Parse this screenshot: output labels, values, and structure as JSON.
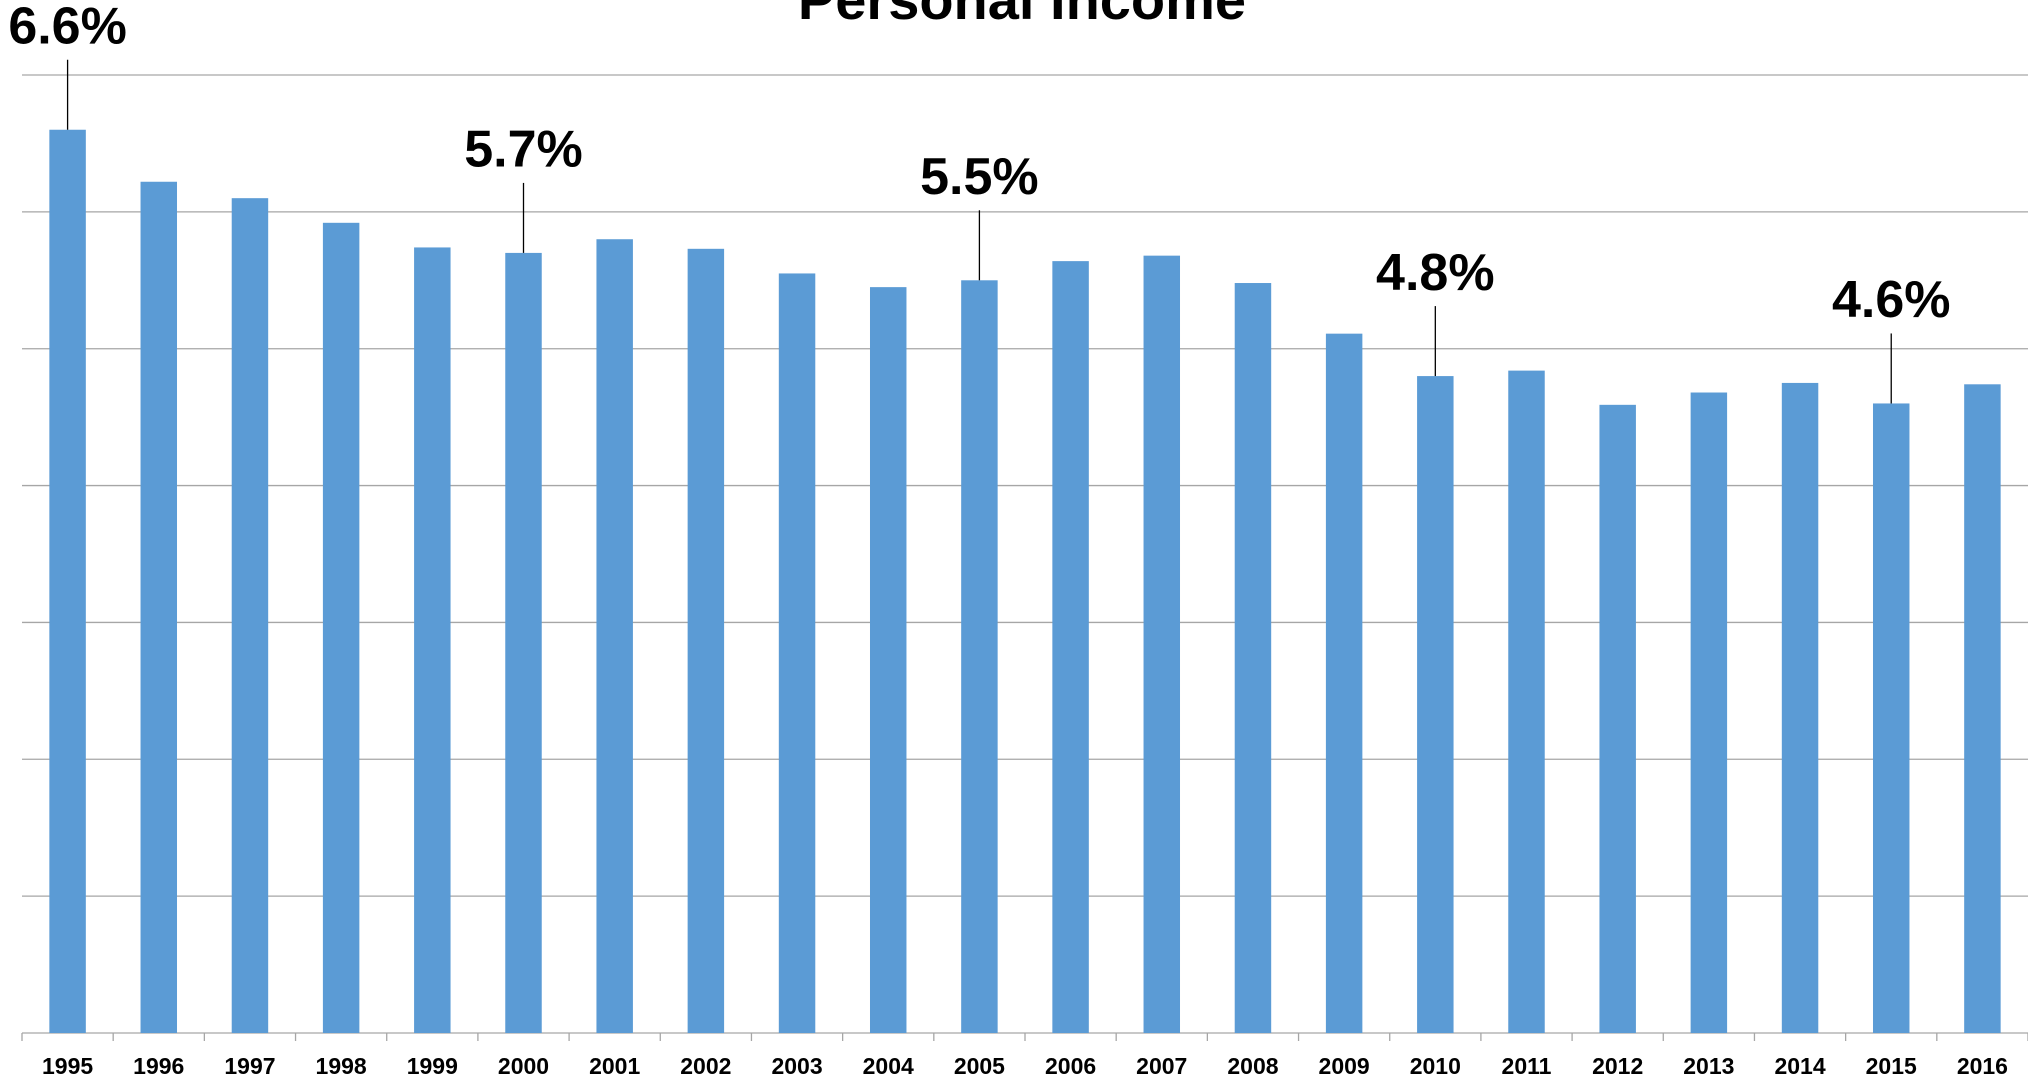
{
  "chart_data": {
    "type": "bar",
    "title": "Personal Income",
    "categories": [
      "1995",
      "1996",
      "1997",
      "1998",
      "1999",
      "2000",
      "2001",
      "2002",
      "2003",
      "2004",
      "2005",
      "2006",
      "2007",
      "2008",
      "2009",
      "2010",
      "2011",
      "2012",
      "2013",
      "2014",
      "2015",
      "2016"
    ],
    "values": [
      6.6,
      6.22,
      6.1,
      5.92,
      5.74,
      5.7,
      5.8,
      5.73,
      5.55,
      5.45,
      5.5,
      5.64,
      5.68,
      5.48,
      5.11,
      4.8,
      4.84,
      4.59,
      4.68,
      4.75,
      4.6,
      4.74
    ],
    "value_labels": [
      "6.6%",
      null,
      null,
      null,
      null,
      "5.7%",
      null,
      null,
      null,
      null,
      "5.5%",
      null,
      null,
      null,
      null,
      "4.8%",
      null,
      null,
      null,
      null,
      "4.6%",
      null
    ],
    "color": "#5b9bd5",
    "ylim": [
      0,
      7
    ],
    "yticks": [
      0,
      1,
      2,
      3,
      4,
      5,
      6,
      7
    ],
    "grid": true
  }
}
